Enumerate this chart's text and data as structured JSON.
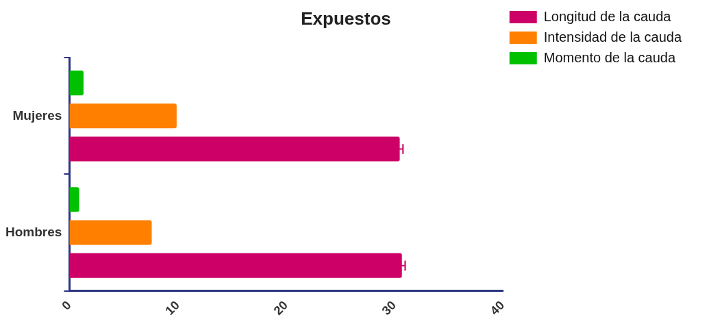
{
  "chart_data": {
    "type": "bar",
    "title": "Expuestos",
    "orientation": "horizontal",
    "categories": [
      "Mujeres",
      "Hombres"
    ],
    "series": [
      {
        "name": "Longitud de la cauda",
        "color": "#cc0066",
        "values": [
          30.5,
          30.7
        ],
        "errors": [
          0.3,
          0.3
        ]
      },
      {
        "name": "Intensidad de la cauda",
        "color": "#ff8000",
        "values": [
          9.9,
          7.6
        ]
      },
      {
        "name": "Momento de la cauda",
        "color": "#00c000",
        "values": [
          1.3,
          0.9
        ]
      }
    ],
    "xlim": [
      0,
      40
    ],
    "xticks": [
      0,
      10,
      20,
      30,
      40
    ],
    "grid": false,
    "legend": "top right"
  }
}
